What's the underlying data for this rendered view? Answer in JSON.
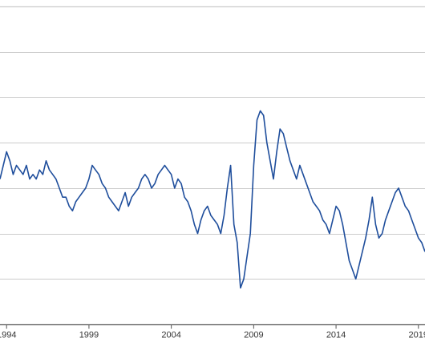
{
  "chart_data": {
    "type": "line",
    "title": "",
    "xlabel": "",
    "ylabel": "",
    "x_ticks": [
      "1994",
      "1999",
      "2004",
      "2009",
      "2014",
      "2019"
    ],
    "xlim": [
      1993.6,
      2019.4
    ],
    "ylim": [
      0,
      7
    ],
    "gridlines_y": [
      1,
      2,
      3,
      4,
      5,
      6,
      7
    ],
    "grid": true,
    "legend": "none",
    "line_color": "#1f4e9c",
    "grid_color": "#cccccc",
    "axis_color": "#555555",
    "series": [
      {
        "x": [
          1993.6,
          1993.8,
          1994.0,
          1994.2,
          1994.4,
          1994.6,
          1994.8,
          1995.0,
          1995.2,
          1995.4,
          1995.6,
          1995.8,
          1996.0,
          1996.2,
          1996.4,
          1996.6,
          1996.8,
          1997.0,
          1997.2,
          1997.4,
          1997.6,
          1997.8,
          1998.0,
          1998.2,
          1998.4,
          1998.6,
          1998.8,
          1999.0,
          1999.2,
          1999.4,
          1999.6,
          1999.8,
          2000.0,
          2000.2,
          2000.4,
          2000.6,
          2000.8,
          2001.0,
          2001.2,
          2001.4,
          2001.6,
          2001.8,
          2002.0,
          2002.2,
          2002.4,
          2002.6,
          2002.8,
          2003.0,
          2003.2,
          2003.4,
          2003.6,
          2003.8,
          2004.0,
          2004.2,
          2004.4,
          2004.6,
          2004.8,
          2005.0,
          2005.2,
          2005.4,
          2005.6,
          2005.8,
          2006.0,
          2006.2,
          2006.4,
          2006.6,
          2006.8,
          2007.0,
          2007.2,
          2007.4,
          2007.6,
          2007.8,
          2008.0,
          2008.2,
          2008.4,
          2008.6,
          2008.8,
          2009.0,
          2009.2,
          2009.4,
          2009.6,
          2009.8,
          2010.0,
          2010.2,
          2010.4,
          2010.6,
          2010.8,
          2011.0,
          2011.2,
          2011.4,
          2011.6,
          2011.8,
          2012.0,
          2012.2,
          2012.4,
          2012.6,
          2012.8,
          2013.0,
          2013.2,
          2013.4,
          2013.6,
          2013.8,
          2014.0,
          2014.2,
          2014.4,
          2014.6,
          2014.8,
          2015.0,
          2015.2,
          2015.4,
          2015.6,
          2015.8,
          2016.0,
          2016.2,
          2016.4,
          2016.6,
          2016.8,
          2017.0,
          2017.2,
          2017.4,
          2017.6,
          2017.8,
          2018.0,
          2018.2,
          2018.4,
          2018.6,
          2018.8,
          2019.0,
          2019.2,
          2019.4
        ],
        "y": [
          3.2,
          3.5,
          3.8,
          3.6,
          3.3,
          3.5,
          3.4,
          3.3,
          3.5,
          3.2,
          3.3,
          3.2,
          3.4,
          3.3,
          3.6,
          3.4,
          3.3,
          3.2,
          3.0,
          2.8,
          2.8,
          2.6,
          2.5,
          2.7,
          2.8,
          2.9,
          3.0,
          3.2,
          3.5,
          3.4,
          3.3,
          3.1,
          3.0,
          2.8,
          2.7,
          2.6,
          2.5,
          2.7,
          2.9,
          2.6,
          2.8,
          2.9,
          3.0,
          3.2,
          3.3,
          3.2,
          3.0,
          3.1,
          3.3,
          3.4,
          3.5,
          3.4,
          3.3,
          3.0,
          3.2,
          3.1,
          2.8,
          2.7,
          2.5,
          2.2,
          2.0,
          2.3,
          2.5,
          2.6,
          2.4,
          2.3,
          2.2,
          2.0,
          2.4,
          3.0,
          3.5,
          2.2,
          1.8,
          0.8,
          1.0,
          1.5,
          2.0,
          3.5,
          4.5,
          4.7,
          4.6,
          4.0,
          3.6,
          3.2,
          3.8,
          4.3,
          4.2,
          3.9,
          3.6,
          3.4,
          3.2,
          3.5,
          3.3,
          3.1,
          2.9,
          2.7,
          2.6,
          2.5,
          2.3,
          2.2,
          2.0,
          2.3,
          2.6,
          2.5,
          2.2,
          1.8,
          1.4,
          1.2,
          1.0,
          1.3,
          1.6,
          1.9,
          2.3,
          2.8,
          2.2,
          1.9,
          2.0,
          2.3,
          2.5,
          2.7,
          2.9,
          3.0,
          2.8,
          2.6,
          2.5,
          2.3,
          2.1,
          1.9,
          1.8,
          1.6
        ]
      }
    ]
  }
}
